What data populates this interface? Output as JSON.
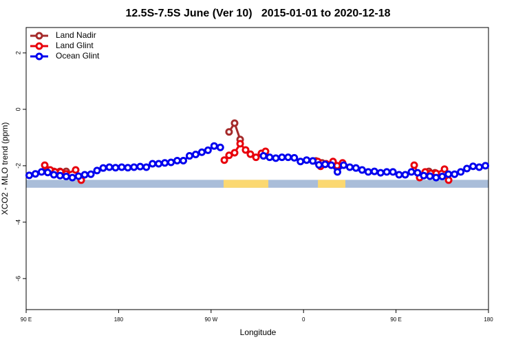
{
  "chart_data": {
    "type": "line",
    "title": "12.5S-7.5S June (Ver 10)   2015-01-01 to 2020-12-18",
    "xlabel": "Longitude",
    "ylabel": "XCO2 - MLO trend (ppm)",
    "xlim": [
      90,
      540
    ],
    "ylim": [
      -7.1,
      2.9
    ],
    "xticks": [
      {
        "value": 90,
        "label": "90 E"
      },
      180,
      {
        "value": 270,
        "label": "90 W"
      },
      {
        "value": 360,
        "label": "0"
      },
      {
        "value": 450,
        "label": "90 E"
      },
      {
        "value": 540,
        "label": "180"
      }
    ],
    "yticks": [
      -6,
      -4,
      -2,
      0,
      2
    ],
    "legend": "top-left",
    "surface_band": {
      "ylim": [
        -2.78,
        -2.5
      ],
      "color": "#a9bdd9",
      "land_color": "#fbd871",
      "land": [
        [
          282.2,
          325.7
        ],
        [
          374,
          400.7
        ]
      ]
    },
    "series": [
      {
        "name": "Land Nadir",
        "color": "#a52a2a",
        "x": [
          111,
          117,
          123,
          129,
          200,
          287.5,
          292.9,
          298.3,
          350,
          372,
          378,
          450,
          482,
          488
        ],
        "values": [
          -2.15,
          -2.2,
          -2.2,
          -2.2,
          null,
          -0.8,
          -0.49,
          -1.07,
          null,
          -1.83,
          -1.9,
          null,
          -2.2,
          -2.25
        ]
      },
      {
        "name": "Land Glint",
        "color": "#e8000b",
        "x": [
          108.1,
          113.4,
          118.1,
          123.5,
          128.8,
          138.2,
          143.6,
          200,
          282.9,
          287.5,
          292.9,
          298.3,
          303.6,
          308.3,
          313.7,
          319,
          323,
          350,
          373.9,
          376.6,
          382,
          388.7,
          392.7,
          398,
          450,
          467.7,
          473,
          478.4,
          483.8,
          489.1,
          497.2,
          501.2
        ],
        "values": [
          -1.98,
          -2.15,
          -2.22,
          -2.22,
          -2.29,
          -2.15,
          -2.51,
          null,
          -1.8,
          -1.63,
          -1.54,
          -1.22,
          -1.44,
          -1.59,
          -1.7,
          -1.56,
          -1.49,
          null,
          -1.85,
          -2.02,
          -1.93,
          -1.85,
          -2.0,
          -1.9,
          null,
          -1.98,
          -2.42,
          -2.22,
          -2.27,
          -2.27,
          -2.12,
          -2.51
        ]
      },
      {
        "name": "Ocean Glint",
        "color": "#0000ee",
        "x": [
          93,
          99,
          105,
          111,
          117,
          123,
          129,
          135,
          141,
          147,
          153,
          159,
          165,
          171,
          177,
          183,
          189,
          195,
          201,
          207,
          213,
          219,
          225,
          231,
          237,
          243,
          249,
          255,
          261,
          267,
          273,
          279,
          285,
          291,
          297,
          303,
          309,
          315,
          321,
          327,
          333,
          339,
          345,
          351,
          357,
          363,
          369,
          375,
          381,
          387,
          393,
          399,
          405,
          411,
          417,
          423,
          429,
          435,
          441,
          447,
          453,
          459,
          465,
          471,
          477,
          483,
          489,
          495,
          501,
          507,
          513,
          519,
          525,
          531,
          537
        ],
        "values": [
          -2.34,
          -2.29,
          -2.22,
          -2.24,
          -2.32,
          -2.35,
          -2.38,
          -2.42,
          -2.37,
          -2.32,
          -2.3,
          -2.17,
          -2.08,
          -2.05,
          -2.07,
          -2.05,
          -2.07,
          -2.05,
          -2.03,
          -2.05,
          -1.93,
          -1.93,
          -1.9,
          -1.88,
          -1.82,
          -1.82,
          -1.65,
          -1.6,
          -1.52,
          -1.45,
          -1.3,
          -1.35,
          null,
          null,
          null,
          null,
          null,
          null,
          -1.65,
          -1.7,
          -1.73,
          -1.7,
          -1.7,
          -1.72,
          -1.85,
          -1.8,
          -1.83,
          -1.97,
          -1.95,
          -1.98,
          -2.22,
          -1.98,
          -2.05,
          -2.08,
          -2.15,
          -2.22,
          -2.2,
          -2.25,
          -2.22,
          -2.22,
          -2.32,
          -2.32,
          -2.22,
          -2.25,
          -2.35,
          -2.37,
          -2.42,
          -2.38,
          -2.3,
          -2.3,
          -2.22,
          -2.1,
          -2.02,
          -2.05,
          -2.0
        ]
      }
    ]
  }
}
